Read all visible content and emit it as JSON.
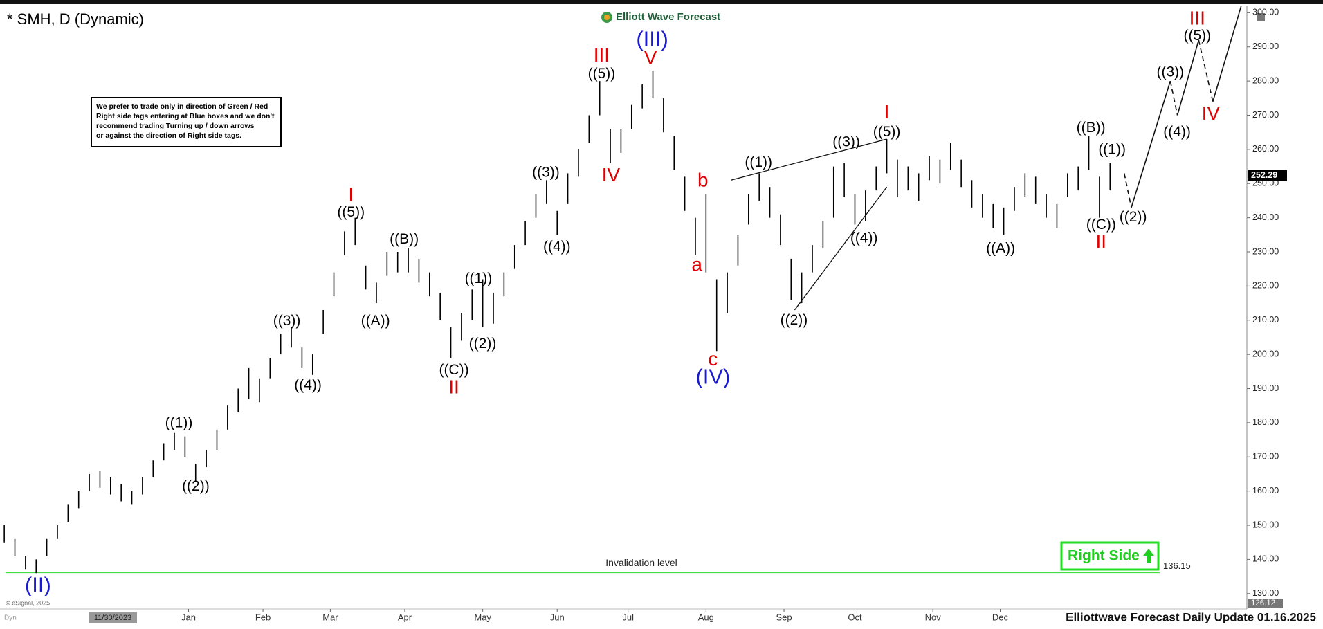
{
  "chart_data": {
    "type": "ohlc",
    "title": "* SMH, D (Dynamic)",
    "logo": "Elliott Wave Forecast",
    "note": [
      "We prefer to trade only in direction of Green / Red",
      "Right side tags entering at Blue boxes and we don't",
      "recommend trading Turning up / down arrows",
      "or against the direction of Right side tags."
    ],
    "footer": "Elliottwave Forecast Daily Update 01.16.2025",
    "copyright": "© eSignal, 2025",
    "cursor_date": "11/30/2023",
    "mode": "Dyn",
    "right_side": "Right Side",
    "last_price": 252.29,
    "scale_bottom": 126.12,
    "xlim": [
      -1.2,
      350.6
    ],
    "xticks": [
      {
        "value": 52,
        "label": "Jan"
      },
      {
        "value": 73,
        "label": "Feb"
      },
      {
        "value": 92,
        "label": "Mar"
      },
      {
        "value": 113,
        "label": "Apr"
      },
      {
        "value": 135,
        "label": "May"
      },
      {
        "value": 156,
        "label": "Jun"
      },
      {
        "value": 176,
        "label": "Jul"
      },
      {
        "value": 198,
        "label": "Aug"
      },
      {
        "value": 220,
        "label": "Sep"
      },
      {
        "value": 240,
        "label": "Oct"
      },
      {
        "value": 262,
        "label": "Nov"
      },
      {
        "value": 281,
        "label": "Dec"
      }
    ],
    "ylim": [
      125.5,
      302.1
    ],
    "yticks": [
      {
        "value": 130,
        "label": "130.00"
      },
      {
        "value": 140,
        "label": "140.00"
      },
      {
        "value": 150,
        "label": "150.00"
      },
      {
        "value": 160,
        "label": "160.00"
      },
      {
        "value": 170,
        "label": "170.00"
      },
      {
        "value": 180,
        "label": "180.00"
      },
      {
        "value": 190,
        "label": "190.00"
      },
      {
        "value": 200,
        "label": "200.00"
      },
      {
        "value": 210,
        "label": "210.00"
      },
      {
        "value": 220,
        "label": "220.00"
      },
      {
        "value": 230,
        "label": "230.00"
      },
      {
        "value": 240,
        "label": "240.00"
      },
      {
        "value": 250,
        "label": "250.00"
      },
      {
        "value": 260,
        "label": "260.00"
      },
      {
        "value": 270,
        "label": "270.00"
      },
      {
        "value": 280,
        "label": "280.00"
      },
      {
        "value": 290,
        "label": "290.00"
      },
      {
        "value": 300,
        "label": "300.00"
      }
    ],
    "bars": {
      "color": "#000000",
      "x": [
        0,
        3,
        6,
        9,
        12,
        15,
        18,
        21,
        24,
        27,
        30,
        33,
        36,
        39,
        42,
        45,
        48,
        51,
        54,
        57,
        60,
        63,
        66,
        69,
        72,
        75,
        78,
        81,
        84,
        87,
        90,
        93,
        96,
        99,
        102,
        105,
        108,
        111,
        114,
        117,
        120,
        123,
        126,
        129,
        132,
        135,
        138,
        141,
        144,
        147,
        150,
        153,
        156,
        159,
        162,
        165,
        168,
        171,
        174,
        177,
        180,
        183,
        186,
        189,
        192,
        195,
        198,
        201,
        204,
        207,
        210,
        213,
        216,
        219,
        222,
        225,
        228,
        231,
        234,
        237,
        240,
        243,
        246,
        249,
        252,
        255,
        258,
        261,
        264,
        267,
        270,
        273,
        276,
        279,
        282,
        285,
        288,
        291,
        294,
        297,
        300,
        303,
        306,
        309,
        312
      ],
      "high": [
        150,
        146,
        141,
        140,
        146,
        150,
        156,
        160,
        165,
        166,
        164,
        162,
        160,
        164,
        169,
        174,
        177,
        176,
        168,
        172,
        178,
        185,
        190,
        196,
        193,
        199,
        206,
        208,
        202,
        200,
        213,
        224,
        236,
        240,
        226,
        221,
        230,
        230,
        231,
        228,
        224,
        218,
        208,
        212,
        219,
        222,
        218,
        224,
        232,
        239,
        247,
        251,
        242,
        253,
        260,
        270,
        280,
        266,
        266,
        273,
        279,
        283,
        275,
        264,
        252,
        240,
        247,
        222,
        224,
        235,
        247,
        253,
        249,
        241,
        228,
        224,
        232,
        239,
        255,
        256,
        247,
        248,
        255,
        263,
        257,
        255,
        253,
        258,
        257,
        262,
        257,
        251,
        247,
        244,
        243,
        249,
        253,
        252,
        247,
        244,
        253,
        255,
        264,
        252,
        256
      ],
      "low": [
        145,
        141,
        137,
        136,
        141,
        146,
        151,
        155,
        160,
        161,
        159,
        157,
        156,
        159,
        164,
        169,
        172,
        170,
        163,
        167,
        172,
        178,
        183,
        187,
        186,
        193,
        200,
        202,
        196,
        194,
        206,
        217,
        229,
        232,
        219,
        215,
        223,
        224,
        224,
        221,
        217,
        210,
        199,
        204,
        210,
        208,
        209,
        217,
        225,
        232,
        240,
        244,
        235,
        244,
        252,
        262,
        270,
        256,
        259,
        266,
        272,
        275,
        265,
        254,
        242,
        229,
        224,
        201,
        212,
        226,
        238,
        245,
        240,
        232,
        216,
        215,
        224,
        231,
        240,
        246,
        238,
        239,
        248,
        253,
        246,
        248,
        245,
        251,
        250,
        254,
        249,
        243,
        240,
        237,
        235,
        242,
        246,
        244,
        240,
        237,
        246,
        248,
        254,
        240,
        248
      ]
    },
    "trendlines": [
      {
        "x": [
          205,
          249
        ],
        "values": [
          251,
          263
        ]
      },
      {
        "x": [
          223,
          249
        ],
        "values": [
          213,
          249
        ]
      }
    ],
    "projection": {
      "x": [
        316,
        318,
        329,
        331,
        337,
        341,
        349
      ],
      "values": [
        253,
        243,
        280,
        270,
        292,
        274,
        302
      ]
    },
    "invalidation": {
      "value": 136.15,
      "text": "Invalidation level",
      "color": "#44dd44"
    },
    "wave_labels": [
      {
        "text": "(II)",
        "color": "#1a1ad0"
      },
      {
        "text": "((1))",
        "color": "#000000"
      },
      {
        "text": "((2))",
        "color": "#000000"
      },
      {
        "text": "((3))",
        "color": "#000000"
      },
      {
        "text": "((4))",
        "color": "#000000"
      },
      {
        "text": "I",
        "color": "#e00000"
      },
      {
        "text": "((5))",
        "color": "#000000"
      },
      {
        "text": "((A))",
        "color": "#000000"
      },
      {
        "text": "((B))",
        "color": "#000000"
      },
      {
        "text": "((C))",
        "color": "#000000"
      },
      {
        "text": "II",
        "color": "#e00000"
      },
      {
        "text": "((1))",
        "color": "#000000"
      },
      {
        "text": "((2))",
        "color": "#000000"
      },
      {
        "text": "((3))",
        "color": "#000000"
      },
      {
        "text": "((4))",
        "color": "#000000"
      },
      {
        "text": "III",
        "color": "#e00000"
      },
      {
        "text": "((5))",
        "color": "#000000"
      },
      {
        "text": "IV",
        "color": "#e00000"
      },
      {
        "text": "(III)",
        "color": "#1a1ad0"
      },
      {
        "text": "V",
        "color": "#e00000"
      },
      {
        "text": "b",
        "color": "#e00000"
      },
      {
        "text": "a",
        "color": "#e00000"
      },
      {
        "text": "c",
        "color": "#e00000"
      },
      {
        "text": "(IV)",
        "color": "#1a1ad0"
      },
      {
        "text": "((1))",
        "color": "#000000"
      },
      {
        "text": "((2))",
        "color": "#000000"
      },
      {
        "text": "((3))",
        "color": "#000000"
      },
      {
        "text": "((4))",
        "color": "#000000"
      },
      {
        "text": "I",
        "color": "#e00000"
      },
      {
        "text": "((5))",
        "color": "#000000"
      },
      {
        "text": "((A))",
        "color": "#000000"
      },
      {
        "text": "((B))",
        "color": "#000000"
      },
      {
        "text": "((1))",
        "color": "#000000"
      },
      {
        "text": "((C))",
        "color": "#000000"
      },
      {
        "text": "II",
        "color": "#e00000"
      },
      {
        "text": "((2))",
        "color": "#000000"
      },
      {
        "text": "((3))",
        "color": "#000000"
      },
      {
        "text": "((4))",
        "color": "#000000"
      },
      {
        "text": "III",
        "color": "#e00000"
      },
      {
        "text": "((5))",
        "color": "#000000"
      },
      {
        "text": "IV",
        "color": "#e00000"
      }
    ]
  }
}
